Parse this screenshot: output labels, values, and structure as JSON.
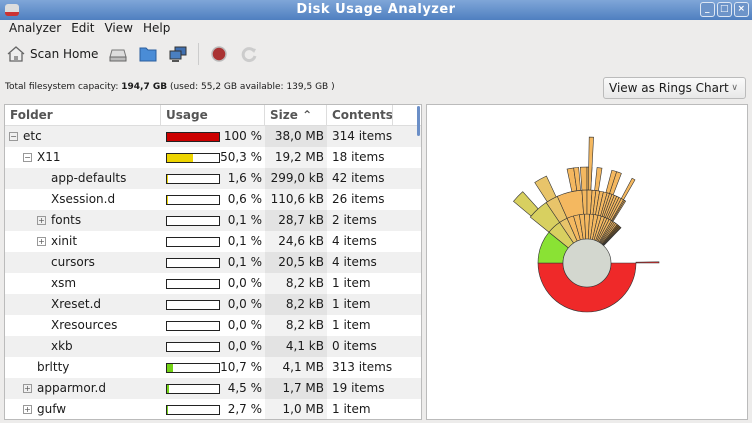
{
  "window": {
    "title": "Disk Usage Analyzer",
    "buttons": [
      "minimize",
      "maximize",
      "close"
    ]
  },
  "menu": [
    "Analyzer",
    "Edit",
    "View",
    "Help"
  ],
  "toolbar": {
    "scan_home": "Scan Home",
    "icons": [
      "home-icon",
      "harddisk-icon",
      "folder-icon",
      "network-icon",
      "stop-icon",
      "refresh-icon"
    ]
  },
  "capacity": {
    "label": "Total filesystem capacity:",
    "total": "194,7 GB",
    "details": "(used: 55,2 GB available: 139,5 GB )"
  },
  "view_select": {
    "value": "View as Rings Chart"
  },
  "table": {
    "headers": [
      "Folder",
      "Usage",
      "Size",
      "Contents"
    ],
    "sort_indicator": "^",
    "rows": [
      {
        "name": "etc",
        "level": 0,
        "expander": "minus",
        "pct": "100 %",
        "fill": 100,
        "color": "#cc0000",
        "size": "38,0 MB",
        "contents": "314 items"
      },
      {
        "name": "X11",
        "level": 1,
        "expander": "minus",
        "pct": "50,3 %",
        "fill": 50.3,
        "color": "#edd400",
        "size": "19,2 MB",
        "contents": "18 items"
      },
      {
        "name": "app-defaults",
        "level": 2,
        "expander": "",
        "pct": "1,6 %",
        "fill": 1.6,
        "color": "#edd400",
        "size": "299,0 kB",
        "contents": "42 items"
      },
      {
        "name": "Xsession.d",
        "level": 2,
        "expander": "",
        "pct": "0,6 %",
        "fill": 0.6,
        "color": "#edd400",
        "size": "110,6 kB",
        "contents": "26 items"
      },
      {
        "name": "fonts",
        "level": 2,
        "expander": "plus",
        "pct": "0,1 %",
        "fill": 0.1,
        "color": "#edd400",
        "size": "28,7 kB",
        "contents": "2 items"
      },
      {
        "name": "xinit",
        "level": 2,
        "expander": "plus",
        "pct": "0,1 %",
        "fill": 0.1,
        "color": "#edd400",
        "size": "24,6 kB",
        "contents": "4 items"
      },
      {
        "name": "cursors",
        "level": 2,
        "expander": "",
        "pct": "0,1 %",
        "fill": 0.1,
        "color": "#edd400",
        "size": "20,5 kB",
        "contents": "4 items"
      },
      {
        "name": "xsm",
        "level": 2,
        "expander": "",
        "pct": "0,0 %",
        "fill": 0,
        "color": "#edd400",
        "size": "8,2 kB",
        "contents": "1 item"
      },
      {
        "name": "Xreset.d",
        "level": 2,
        "expander": "",
        "pct": "0,0 %",
        "fill": 0,
        "color": "#edd400",
        "size": "8,2 kB",
        "contents": "1 item"
      },
      {
        "name": "Xresources",
        "level": 2,
        "expander": "",
        "pct": "0,0 %",
        "fill": 0,
        "color": "#edd400",
        "size": "8,2 kB",
        "contents": "1 item"
      },
      {
        "name": "xkb",
        "level": 2,
        "expander": "",
        "pct": "0,0 %",
        "fill": 0,
        "color": "#edd400",
        "size": "4,1 kB",
        "contents": "0 items"
      },
      {
        "name": "brltty",
        "level": 1,
        "expander": "",
        "pct": "10,7 %",
        "fill": 10.7,
        "color": "#73d216",
        "size": "4,1 MB",
        "contents": "313 items"
      },
      {
        "name": "apparmor.d",
        "level": 1,
        "expander": "plus",
        "pct": "4,5 %",
        "fill": 4.5,
        "color": "#73d216",
        "size": "1,7 MB",
        "contents": "19 items"
      },
      {
        "name": "gufw",
        "level": 1,
        "expander": "plus",
        "pct": "2,7 %",
        "fill": 2.7,
        "color": "#73d216",
        "size": "1,0 MB",
        "contents": "1 item"
      }
    ]
  }
}
